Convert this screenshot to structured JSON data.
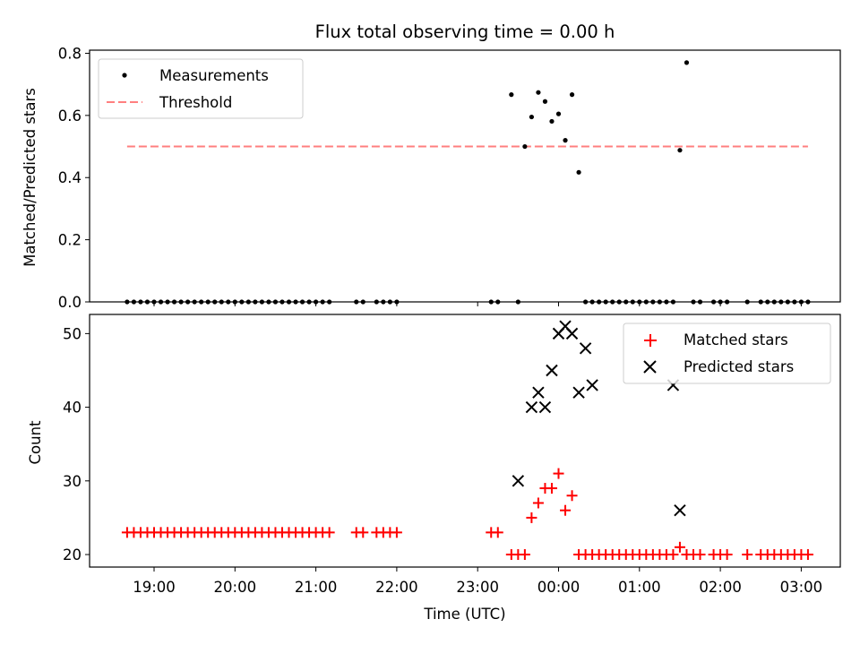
{
  "chart_data": [
    {
      "type": "scatter",
      "title": "Flux total observing time = 0.00 h",
      "xlabel": "",
      "ylabel": "Matched/Predicted stars",
      "ylim": [
        0,
        0.81
      ],
      "yticks": [
        "0.0",
        "0.2",
        "0.4",
        "0.6",
        "0.8"
      ],
      "legend_position": "top-left",
      "series": [
        {
          "name": "Measurements",
          "marker": "dot",
          "color": "#000000",
          "x": [
            "18:40",
            "18:45",
            "18:50",
            "18:55",
            "19:00",
            "19:05",
            "19:10",
            "19:15",
            "19:20",
            "19:25",
            "19:30",
            "19:35",
            "19:40",
            "19:45",
            "19:50",
            "19:55",
            "20:00",
            "20:05",
            "20:10",
            "20:15",
            "20:20",
            "20:25",
            "20:30",
            "20:35",
            "20:40",
            "20:45",
            "20:50",
            "20:55",
            "21:00",
            "21:05",
            "21:10",
            "21:30",
            "21:35",
            "21:45",
            "21:50",
            "21:55",
            "22:00",
            "23:10",
            "23:15",
            "23:25",
            "23:30",
            "23:35",
            "23:40",
            "23:45",
            "23:50",
            "23:55",
            "00:00",
            "00:05",
            "00:10",
            "00:15",
            "00:20",
            "00:25",
            "00:30",
            "00:35",
            "00:40",
            "00:45",
            "00:50",
            "00:55",
            "01:00",
            "01:05",
            "01:10",
            "01:15",
            "01:20",
            "01:25",
            "01:30",
            "01:35",
            "01:40",
            "01:45",
            "01:55",
            "02:00",
            "02:05",
            "02:20",
            "02:30",
            "02:35",
            "02:40",
            "02:45",
            "02:50",
            "02:55",
            "03:00",
            "03:05"
          ],
          "y": [
            0,
            0,
            0,
            0,
            0,
            0,
            0,
            0,
            0,
            0,
            0,
            0,
            0,
            0,
            0,
            0,
            0,
            0,
            0,
            0,
            0,
            0,
            0,
            0,
            0,
            0,
            0,
            0,
            0,
            0,
            0,
            0,
            0,
            0,
            0,
            0,
            0,
            0,
            0,
            0.667,
            0,
            0.5,
            0.595,
            0.674,
            0.645,
            0.581,
            0.605,
            0.52,
            0.667,
            0.417,
            0,
            0,
            0,
            0,
            0,
            0,
            0,
            0,
            0,
            0,
            0,
            0,
            0,
            0,
            0.488,
            0.77,
            0,
            0,
            0,
            0,
            0,
            0,
            0,
            0,
            0,
            0,
            0,
            0,
            0,
            0
          ]
        },
        {
          "name": "Threshold",
          "style": "dashed",
          "color": "#ff7f7f",
          "x": [
            "18:40",
            "03:05"
          ],
          "y": [
            0.5,
            0.5
          ]
        }
      ]
    },
    {
      "type": "scatter",
      "title": "",
      "xlabel": "Time (UTC)",
      "ylabel": "Count",
      "ylim": [
        18.3,
        52.6
      ],
      "yticks": [
        "20",
        "30",
        "40",
        "50"
      ],
      "xticks": [
        "19:00",
        "20:00",
        "21:00",
        "22:00",
        "23:00",
        "00:00",
        "01:00",
        "02:00",
        "03:00"
      ],
      "legend_position": "top-right",
      "series": [
        {
          "name": "Matched stars",
          "marker": "plus",
          "color": "#ff0000",
          "x": [
            "18:40",
            "18:45",
            "18:50",
            "18:55",
            "19:00",
            "19:05",
            "19:10",
            "19:15",
            "19:20",
            "19:25",
            "19:30",
            "19:35",
            "19:40",
            "19:45",
            "19:50",
            "19:55",
            "20:00",
            "20:05",
            "20:10",
            "20:15",
            "20:20",
            "20:25",
            "20:30",
            "20:35",
            "20:40",
            "20:45",
            "20:50",
            "20:55",
            "21:00",
            "21:05",
            "21:10",
            "21:30",
            "21:35",
            "21:45",
            "21:50",
            "21:55",
            "22:00",
            "23:10",
            "23:15",
            "23:25",
            "23:30",
            "23:35",
            "23:40",
            "23:45",
            "23:50",
            "23:55",
            "00:00",
            "00:05",
            "00:10",
            "00:15",
            "00:20",
            "00:25",
            "00:30",
            "00:35",
            "00:40",
            "00:45",
            "00:50",
            "00:55",
            "01:00",
            "01:05",
            "01:10",
            "01:15",
            "01:20",
            "01:25",
            "01:30",
            "01:35",
            "01:40",
            "01:45",
            "01:55",
            "02:00",
            "02:05",
            "02:20",
            "02:30",
            "02:35",
            "02:40",
            "02:45",
            "02:50",
            "02:55",
            "03:00",
            "03:05"
          ],
          "y": [
            23,
            23,
            23,
            23,
            23,
            23,
            23,
            23,
            23,
            23,
            23,
            23,
            23,
            23,
            23,
            23,
            23,
            23,
            23,
            23,
            23,
            23,
            23,
            23,
            23,
            23,
            23,
            23,
            23,
            23,
            23,
            23,
            23,
            23,
            23,
            23,
            23,
            23,
            23,
            20,
            20,
            20,
            25,
            27,
            29,
            29,
            31,
            26,
            28,
            20,
            20,
            20,
            20,
            20,
            20,
            20,
            20,
            20,
            20,
            20,
            20,
            20,
            20,
            20,
            21,
            20,
            20,
            20,
            20,
            20,
            20,
            20,
            20,
            20,
            20,
            20,
            20,
            20,
            20,
            20
          ]
        },
        {
          "name": "Predicted stars",
          "marker": "x",
          "color": "#000000",
          "x": [
            "23:30",
            "23:40",
            "23:45",
            "23:50",
            "23:55",
            "00:00",
            "00:05",
            "00:10",
            "00:15",
            "00:20",
            "00:25",
            "01:25",
            "01:30"
          ],
          "y": [
            30,
            40,
            42,
            40,
            45,
            50,
            51,
            50,
            42,
            48,
            43,
            43,
            26
          ]
        }
      ]
    }
  ]
}
